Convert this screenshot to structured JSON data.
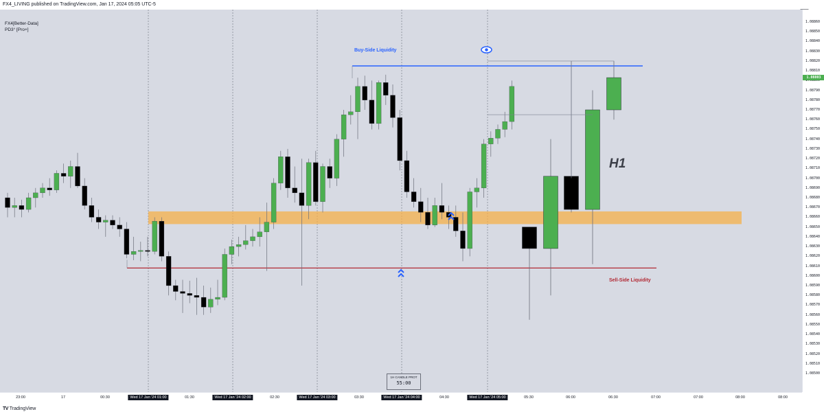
{
  "header": {
    "publisher_line": "FX4_LIVING published on TradingView.com, Jan 17, 2024 05:05 UTC-5"
  },
  "legend": {
    "line1": "FX4[Better-Data]",
    "line2": "PD3° [Pro+]"
  },
  "footer": {
    "brand": "TradingView"
  },
  "colors": {
    "bull": "#4caf50",
    "bear": "#000000",
    "zone": "#f5b04a",
    "bsl": "#2962ff",
    "ssl": "#b22833",
    "background": "#d7dae3"
  },
  "annotations": {
    "bsl_label": "Buy-Side Liquidity",
    "ssl_label": "Sell-Side Liquidity",
    "timeframe_label": "H1",
    "countdown_title": "1H CANDLE PROT",
    "countdown_time": "55:00"
  },
  "chart_data": {
    "type": "candlestick",
    "title": "",
    "xlabel": "",
    "ylabel": "",
    "ylim": [
      1.0649,
      1.0887
    ],
    "current_price": 1.08803,
    "current_price_label": "1.08803",
    "y_ticks": [
      "1.08860",
      "1.08850",
      "1.08840",
      "1.08830",
      "1.08820",
      "1.08810",
      "1.08800",
      "1.08790",
      "1.08780",
      "1.08770",
      "1.08760",
      "1.08750",
      "1.08740",
      "1.08730",
      "1.08720",
      "1.08710",
      "1.08700",
      "1.08690",
      "1.08680",
      "1.08670",
      "1.08660",
      "1.08650",
      "1.08640",
      "1.08630",
      "1.08620",
      "1.08610",
      "1.08600",
      "1.08590",
      "1.08580",
      "1.08570",
      "1.08560",
      "1.08550",
      "1.08540",
      "1.08530",
      "1.08520",
      "1.08510",
      "1.08500"
    ],
    "y_tick_values": [
      1.0886,
      1.0885,
      1.0884,
      1.0883,
      1.0882,
      1.0881,
      1.088,
      1.0879,
      1.0878,
      1.0877,
      1.0876,
      1.0875,
      1.0874,
      1.0873,
      1.0872,
      1.0871,
      1.087,
      1.0869,
      1.0868,
      1.0867,
      1.0866,
      1.0865,
      1.0864,
      1.0863,
      1.0862,
      1.0861,
      1.086,
      1.0859,
      1.0858,
      1.0857,
      1.0856,
      1.0855,
      1.0854,
      1.0853,
      1.0852,
      1.0851,
      1.085
    ],
    "x_ticks": [
      {
        "label": "23:00",
        "highlight": false
      },
      {
        "label": "17",
        "highlight": false
      },
      {
        "label": "00:30",
        "highlight": false
      },
      {
        "label": "Wed 17 Jan '24  01:00",
        "highlight": true
      },
      {
        "label": "01:30",
        "highlight": false
      },
      {
        "label": "Wed 17 Jan '24  02:00",
        "highlight": true
      },
      {
        "label": "02:30",
        "highlight": false
      },
      {
        "label": "Wed 17 Jan '24  03:00",
        "highlight": true
      },
      {
        "label": "03:30",
        "highlight": false
      },
      {
        "label": "Wed 17 Jan '24  04:00",
        "highlight": true
      },
      {
        "label": "04:30",
        "highlight": false
      },
      {
        "label": "Wed 17 Jan '24  05:00",
        "highlight": true
      },
      {
        "label": "05:30",
        "highlight": false
      },
      {
        "label": "06:00",
        "highlight": false
      },
      {
        "label": "06:30",
        "highlight": false
      },
      {
        "label": "07:00",
        "highlight": false
      },
      {
        "label": "07:00",
        "highlight": false
      },
      {
        "label": "08:00",
        "highlight": false
      },
      {
        "label": "08:00",
        "highlight": false
      }
    ],
    "m5_candles": [
      [
        1.0868,
        1.08685,
        1.0866,
        1.0867
      ],
      [
        1.0867,
        1.0868,
        1.0866,
        1.08672
      ],
      [
        1.08672,
        1.08678,
        1.0866,
        1.08668
      ],
      [
        1.08668,
        1.08685,
        1.08665,
        1.0868
      ],
      [
        1.0868,
        1.0869,
        1.0867,
        1.08685
      ],
      [
        1.08685,
        1.08695,
        1.0868,
        1.0869
      ],
      [
        1.0869,
        1.087,
        1.08682,
        1.08688
      ],
      [
        1.08688,
        1.08708,
        1.08685,
        1.08705
      ],
      [
        1.08705,
        1.08715,
        1.08695,
        1.08702
      ],
      [
        1.08702,
        1.08718,
        1.0869,
        1.08712
      ],
      [
        1.08712,
        1.08726,
        1.0869,
        1.08692
      ],
      [
        1.08692,
        1.087,
        1.08668,
        1.08672
      ],
      [
        1.08672,
        1.0868,
        1.08655,
        1.0866
      ],
      [
        1.0866,
        1.08668,
        1.08648,
        1.08655
      ],
      [
        1.08655,
        1.08662,
        1.0864,
        1.08657
      ],
      [
        1.08657,
        1.08662,
        1.08648,
        1.08652
      ],
      [
        1.08652,
        1.0866,
        1.0864,
        1.08648
      ],
      [
        1.08648,
        1.08655,
        1.08618,
        1.08622
      ],
      [
        1.08622,
        1.0864,
        1.08616,
        1.08625
      ],
      [
        1.08625,
        1.08635,
        1.08615,
        1.08626
      ],
      [
        1.08626,
        1.0864,
        1.0862,
        1.08625
      ],
      [
        1.08625,
        1.0866,
        1.08622,
        1.08656
      ],
      [
        1.08656,
        1.0866,
        1.08615,
        1.0862
      ],
      [
        1.0862,
        1.08625,
        1.0858,
        1.0859
      ],
      [
        1.0859,
        1.08596,
        1.08575,
        1.08584
      ],
      [
        1.08584,
        1.08596,
        1.08562,
        1.08582
      ],
      [
        1.08582,
        1.08595,
        1.08572,
        1.0858
      ],
      [
        1.0858,
        1.08598,
        1.0856,
        1.08578
      ],
      [
        1.08578,
        1.0859,
        1.0856,
        1.08568
      ],
      [
        1.08568,
        1.08588,
        1.08562,
        1.08576
      ],
      [
        1.08576,
        1.08596,
        1.0857,
        1.08578
      ],
      [
        1.08578,
        1.08628,
        1.08575,
        1.08622
      ],
      [
        1.08622,
        1.08637,
        1.08612,
        1.0863
      ],
      [
        1.0863,
        1.0864,
        1.0862,
        1.08632
      ],
      [
        1.08632,
        1.08652,
        1.08627,
        1.08636
      ],
      [
        1.08636,
        1.08648,
        1.0863,
        1.0864
      ],
      [
        1.0864,
        1.0866,
        1.0863,
        1.08645
      ],
      [
        1.08645,
        1.08675,
        1.08605,
        1.08655
      ],
      [
        1.08655,
        1.087,
        1.08648,
        1.08695
      ],
      [
        1.08695,
        1.08728,
        1.08688,
        1.08722
      ],
      [
        1.08722,
        1.0873,
        1.0868,
        1.0869
      ],
      [
        1.0869,
        1.08712,
        1.08675,
        1.08685
      ],
      [
        1.08685,
        1.0872,
        1.0859,
        1.08672
      ],
      [
        1.08672,
        1.0872,
        1.08658,
        1.08716
      ],
      [
        1.08716,
        1.08728,
        1.08672,
        1.08676
      ],
      [
        1.08676,
        1.08715,
        1.08665,
        1.08712
      ],
      [
        1.08712,
        1.0872,
        1.0869,
        1.087
      ],
      [
        1.087,
        1.08745,
        1.08692,
        1.0874
      ],
      [
        1.0874,
        1.0877,
        1.08722,
        1.08765
      ],
      [
        1.08765,
        1.08785,
        1.08755,
        1.08768
      ],
      [
        1.08768,
        1.08803,
        1.0874,
        1.08794
      ],
      [
        1.08794,
        1.08805,
        1.0877,
        1.0878
      ],
      [
        1.0878,
        1.088,
        1.0875,
        1.08756
      ],
      [
        1.08756,
        1.088,
        1.0875,
        1.08798
      ],
      [
        1.08798,
        1.08806,
        1.08775,
        1.08785
      ],
      [
        1.08785,
        1.08796,
        1.08752,
        1.08762
      ],
      [
        1.08762,
        1.0877,
        1.08708,
        1.08718
      ],
      [
        1.08718,
        1.08728,
        1.0868,
        1.08686
      ],
      [
        1.08686,
        1.087,
        1.0867,
        1.08676
      ],
      [
        1.08676,
        1.0869,
        1.08655,
        1.08665
      ],
      [
        1.08665,
        1.0868,
        1.08648,
        1.08652
      ],
      [
        1.08652,
        1.0868,
        1.0865,
        1.08672
      ],
      [
        1.08672,
        1.08695,
        1.08658,
        1.08665
      ],
      [
        1.08665,
        1.08672,
        1.08648,
        1.0866
      ],
      [
        1.0866,
        1.08672,
        1.0864,
        1.08646
      ],
      [
        1.08646,
        1.08665,
        1.08615,
        1.08628
      ],
      [
        1.08628,
        1.0869,
        1.0862,
        1.08686
      ],
      [
        1.08686,
        1.087,
        1.0867,
        1.0869
      ],
      [
        1.0869,
        1.0874,
        1.0868,
        1.08735
      ],
      [
        1.08735,
        1.08748,
        1.08722,
        1.08741
      ],
      [
        1.08741,
        1.08755,
        1.08735,
        1.0875
      ],
      [
        1.0875,
        1.08768,
        1.08742,
        1.08758
      ],
      [
        1.08758,
        1.088,
        1.0875,
        1.08794
      ]
    ],
    "h1_candles": [
      [
        1.0865,
        1.0865,
        1.08555,
        1.08628
      ],
      [
        1.08628,
        1.0874,
        1.0858,
        1.08702
      ],
      [
        1.08702,
        1.0882,
        1.08665,
        1.08668
      ],
      [
        1.08668,
        1.0879,
        1.08612,
        1.0877
      ],
      [
        1.0877,
        1.0882,
        1.0876,
        1.08803
      ]
    ],
    "zones": [
      {
        "name": "premium-discount-zone",
        "from": 1.08653,
        "to": 1.08666
      }
    ],
    "levels": [
      {
        "name": "Buy-Side Liquidity",
        "price": 1.08815
      },
      {
        "name": "Sell-Side Liquidity",
        "price": 1.08608
      }
    ]
  }
}
